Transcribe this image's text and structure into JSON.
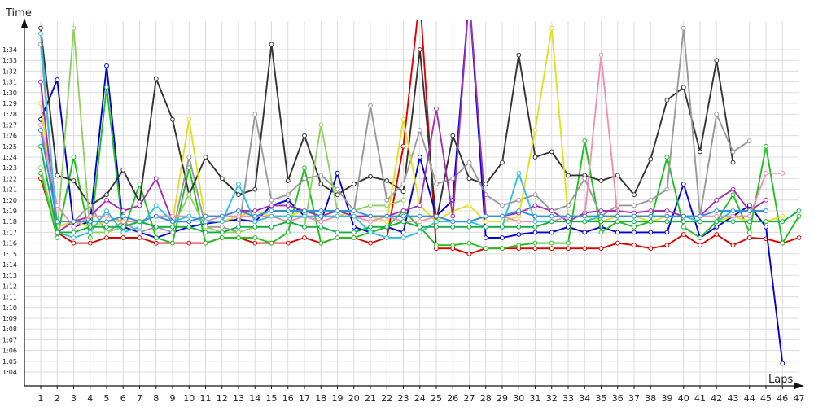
{
  "chart_data": {
    "type": "line",
    "xlabel": "Laps",
    "ylabel": "Time",
    "x_ticks": [
      "1",
      "2",
      "3",
      "4",
      "5",
      "6",
      "7",
      "8",
      "9",
      "10",
      "11",
      "12",
      "13",
      "14",
      "15",
      "16",
      "17",
      "18",
      "19",
      "20",
      "21",
      "22",
      "23",
      "24",
      "25",
      "26",
      "27",
      "28",
      "29",
      "30",
      "31",
      "32",
      "33",
      "34",
      "35",
      "36",
      "37",
      "38",
      "39",
      "40",
      "41",
      "42",
      "43",
      "44",
      "45",
      "46",
      "47"
    ],
    "y_tick_labels": [
      "1:04",
      "1:05",
      "1:06",
      "1:07",
      "1:08",
      "1:09",
      "1:10",
      "1:11",
      "1:12",
      "1:13",
      "1:14",
      "1:15",
      "1:16",
      "1:17",
      "1:18",
      "1:19",
      "1:20",
      "1:21",
      "1:22",
      "1:23",
      "1:24",
      "1:25",
      "1:26",
      "1:27",
      "1:28",
      "1:29",
      "1:30",
      "1:31",
      "1:32",
      "1:33",
      "1:34"
    ],
    "x_range": [
      1,
      47
    ],
    "y_range_seconds": [
      63,
      96
    ],
    "y_tick_range_seconds": [
      64,
      94
    ],
    "grid": true,
    "legend": "none",
    "series": [
      {
        "color": "#e00000",
        "values": [
          82.0,
          77.0,
          76.0,
          76.0,
          76.5,
          76.5,
          76.5,
          76.0,
          76.0,
          76.0,
          76.0,
          76.5,
          76.5,
          76.0,
          76.0,
          76.0,
          76.5,
          76.0,
          76.5,
          76.5,
          76.0,
          76.5,
          85.0,
          99.0,
          75.5,
          75.5,
          75.0,
          75.5,
          75.5,
          75.5,
          75.5,
          75.5,
          75.5,
          75.5,
          75.5,
          76.0,
          75.8,
          75.5,
          75.8,
          76.8,
          75.8,
          76.8,
          75.8,
          76.5,
          76.4,
          76.0,
          76.5
        ]
      },
      {
        "color": "#0000d0",
        "values": [
          87.5,
          91.2,
          77.5,
          78.0,
          92.5,
          77.5,
          77.0,
          76.5,
          77.0,
          77.5,
          77.8,
          78.0,
          78.2,
          78.0,
          79.5,
          80.0,
          78.5,
          78.0,
          82.5,
          77.5,
          77.0,
          77.5,
          77.0,
          84.0,
          78.5,
          80.0,
          99.0,
          76.5,
          76.5,
          76.8,
          77.0,
          77.0,
          77.5,
          77.0,
          77.5,
          77.0,
          77.0,
          77.0,
          77.0,
          81.5,
          76.5,
          77.5,
          78.5,
          79.5,
          77.5,
          64.8
        ]
      },
      {
        "color": "#20c020",
        "values": [
          82.5,
          76.5,
          84.0,
          76.5,
          90.5,
          77.0,
          81.5,
          76.5,
          76.0,
          83.0,
          76.0,
          76.5,
          76.5,
          76.5,
          76.0,
          77.0,
          83.0,
          76.0,
          76.5,
          76.5,
          77.0,
          77.5,
          79.0,
          77.5,
          75.8,
          75.8,
          76.0,
          75.5,
          75.5,
          75.8,
          76.0,
          76.0,
          76.0,
          85.5,
          77.0,
          78.0,
          77.5,
          78.0,
          84.0,
          77.5,
          76.5,
          78.0,
          80.5,
          77.0,
          85.0,
          76.0,
          78.5
        ]
      },
      {
        "color": "#333333",
        "values": [
          96.0,
          82.3,
          81.8,
          79.5,
          80.5,
          82.8,
          79.8,
          91.3,
          87.5,
          80.5,
          84.0,
          82.0,
          80.5,
          81.0,
          94.5,
          81.8,
          86.0,
          81.5,
          80.5,
          81.5,
          82.2,
          81.8,
          80.8,
          94.0,
          78.0,
          86.0,
          82.0,
          81.5,
          83.5,
          93.5,
          84.0,
          84.5,
          82.3,
          82.3,
          81.8,
          82.3,
          80.5,
          83.8,
          89.3,
          90.5,
          84.5,
          93.0,
          83.5
        ]
      },
      {
        "color": "#999999",
        "values": [
          94.5,
          77.5,
          78.0,
          79.5,
          77.0,
          78.0,
          77.0,
          77.5,
          77.0,
          84.0,
          77.5,
          77.5,
          77.0,
          88.0,
          80.0,
          80.5,
          82.0,
          82.3,
          81.0,
          79.0,
          88.8,
          80.0,
          81.5,
          86.5,
          81.5,
          82.0,
          83.5,
          80.5,
          79.5,
          80.0,
          80.5,
          79.0,
          79.5,
          82.0,
          78.5,
          79.5,
          79.5,
          80.0,
          81.0,
          96.0,
          78.5,
          88.0,
          84.5,
          85.5
        ]
      },
      {
        "color": "#90d060",
        "values": [
          83.0,
          77.0,
          96.0,
          77.0,
          77.0,
          77.5,
          78.0,
          77.5,
          77.5,
          80.5,
          77.5,
          77.0,
          77.0,
          77.5,
          77.5,
          78.0,
          77.5,
          87.0,
          79.0,
          79.0,
          79.5,
          79.5,
          80.0
        ]
      },
      {
        "color": "#e0e020",
        "values": [
          89.0,
          77.5,
          78.0,
          77.5,
          78.0,
          78.0,
          78.0,
          78.5,
          78.0,
          87.5,
          78.0,
          78.0,
          78.5,
          79.0,
          78.5,
          78.5,
          79.0,
          78.5,
          78.5,
          79.0,
          78.5,
          78.0,
          87.5,
          79.5,
          78.0,
          79.0,
          79.5,
          78.0,
          78.0,
          78.5,
          86.5,
          96.0,
          78.5,
          78.5,
          78.0,
          78.5,
          78.5,
          78.0,
          78.5,
          78.5,
          78.0,
          78.0,
          78.5,
          78.0,
          78.0,
          78.5
        ]
      },
      {
        "color": "#a030b0",
        "values": [
          91.0,
          77.0,
          78.0,
          78.5,
          80.0,
          79.0,
          79.5,
          82.0,
          78.0,
          78.0,
          78.5,
          78.5,
          79.0,
          79.0,
          79.5,
          79.5,
          79.0,
          78.5,
          79.0,
          78.5,
          78.5,
          78.5,
          79.0,
          79.5,
          88.5,
          78.5,
          99.0,
          78.5,
          78.5,
          78.8,
          79.5,
          79.0,
          78.0,
          78.8,
          79.0,
          79.0,
          78.8,
          79.0,
          79.0,
          78.5,
          78.5,
          80.0,
          81.0,
          79.0,
          80.0
        ]
      },
      {
        "color": "#f090b0",
        "values": [
          87.0,
          79.5,
          77.5,
          78.5,
          78.5,
          78.0,
          78.0,
          78.5,
          78.5,
          78.5,
          78.0,
          78.5,
          78.5,
          78.5,
          78.5,
          78.0,
          78.5,
          78.0,
          78.5,
          78.5,
          78.0,
          78.5,
          78.0,
          78.0,
          78.5,
          78.0,
          78.0,
          78.5,
          78.5,
          78.0,
          78.0,
          78.0,
          78.5,
          78.5,
          93.5,
          78.5,
          78.5,
          78.5,
          78.5,
          78.5,
          78.5,
          78.5,
          78.5,
          78.5,
          82.5,
          82.5
        ]
      },
      {
        "color": "#30c0e0",
        "values": [
          95.5,
          77.0,
          76.5,
          77.0,
          79.0,
          77.0,
          77.5,
          79.5,
          78.0,
          78.5,
          78.0,
          78.0,
          81.5,
          78.0,
          78.5,
          78.5,
          78.5,
          78.5,
          78.5,
          78.5,
          77.0,
          76.5,
          76.5,
          77.0,
          78.0,
          78.0,
          78.0,
          77.5,
          77.5,
          82.5,
          78.0,
          78.0,
          78.0,
          78.0,
          78.5,
          78.5,
          78.5,
          78.5,
          78.5,
          78.5,
          78.0,
          78.0,
          79.0,
          79.0,
          79.0
        ]
      },
      {
        "color": "#3090e0",
        "values": [
          86.5,
          78.0,
          78.0,
          78.0,
          78.0,
          78.5,
          78.0,
          78.5,
          78.0,
          78.0,
          78.5,
          78.5,
          79.0,
          78.5,
          79.0,
          79.0,
          79.0,
          79.0,
          79.0,
          79.0,
          78.5,
          78.5,
          78.5,
          78.5,
          78.5,
          78.0,
          78.0,
          78.5,
          78.5,
          79.0,
          78.5,
          78.5,
          78.5,
          78.5,
          78.5,
          78.5,
          78.5,
          78.5,
          78.5,
          78.5,
          78.5,
          79.0,
          79.0,
          79.0,
          79.0
        ]
      },
      {
        "color": "#10b040",
        "values": [
          85.0,
          77.0,
          77.0,
          77.5,
          77.5,
          77.5,
          78.0,
          77.5,
          77.5,
          77.5,
          77.0,
          77.0,
          77.5,
          77.5,
          77.5,
          78.0,
          77.5,
          77.5,
          77.0,
          77.0,
          77.5,
          77.5,
          78.0,
          77.5,
          77.5,
          77.5,
          77.5,
          77.5,
          77.5,
          77.5,
          77.5,
          78.0,
          78.0,
          78.0,
          78.0,
          78.0,
          78.0,
          78.0,
          78.0,
          78.0,
          78.0,
          78.0,
          78.0,
          78.0,
          78.0,
          78.0,
          79.0
        ]
      }
    ]
  }
}
